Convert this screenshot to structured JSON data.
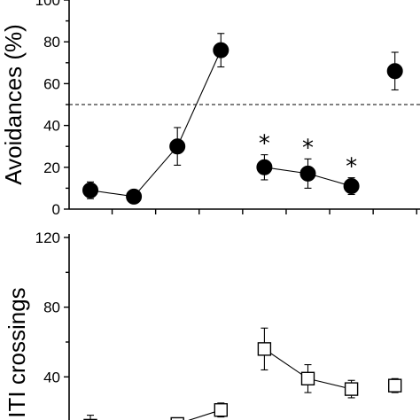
{
  "chart_data": [
    {
      "type": "scatter",
      "ylabel": "Avoidances (%)",
      "ylim": [
        0,
        100
      ],
      "yticks": [
        0,
        20,
        40,
        60,
        80,
        100
      ],
      "x_categories": 8,
      "reference_line": 50,
      "grid": false,
      "series": [
        {
          "marker": "filled-circle",
          "groups": [
            {
              "points": [
                {
                  "x": 1,
                  "y": 9,
                  "err": 4
                },
                {
                  "x": 2,
                  "y": 6,
                  "err": 0
                },
                {
                  "x": 3,
                  "y": 30,
                  "err": 9
                },
                {
                  "x": 4,
                  "y": 76,
                  "err": 8
                }
              ]
            },
            {
              "points": [
                {
                  "x": 5,
                  "y": 20,
                  "err": 6
                },
                {
                  "x": 6,
                  "y": 17,
                  "err": 7
                },
                {
                  "x": 7,
                  "y": 11,
                  "err": 4
                }
              ]
            },
            {
              "points": [
                {
                  "x": 8,
                  "y": 66,
                  "err": 9
                }
              ]
            }
          ]
        }
      ],
      "annotations": [
        {
          "text": "*",
          "x": 5
        },
        {
          "text": "*",
          "x": 6
        },
        {
          "text": "*",
          "x": 7
        }
      ]
    },
    {
      "type": "scatter",
      "ylabel": "ITI crossings",
      "ylim": [
        0,
        120
      ],
      "yticks": [
        40,
        80,
        120
      ],
      "x_categories": 8,
      "grid": false,
      "series": [
        {
          "marker": "open-square",
          "groups": [
            {
              "points": [
                {
                  "x": 1,
                  "y": 12,
                  "err": 6
                },
                {
                  "x": 2,
                  "y": 9,
                  "err": 0
                },
                {
                  "x": 3,
                  "y": 13,
                  "err": 0
                },
                {
                  "x": 4,
                  "y": 21,
                  "err": 4
                }
              ]
            },
            {
              "points": [
                {
                  "x": 5,
                  "y": 56,
                  "err": 12
                },
                {
                  "x": 6,
                  "y": 39,
                  "err": 8
                },
                {
                  "x": 7,
                  "y": 33,
                  "err": 5
                }
              ]
            },
            {
              "points": [
                {
                  "x": 8,
                  "y": 35,
                  "err": 4
                }
              ]
            }
          ]
        }
      ]
    }
  ]
}
